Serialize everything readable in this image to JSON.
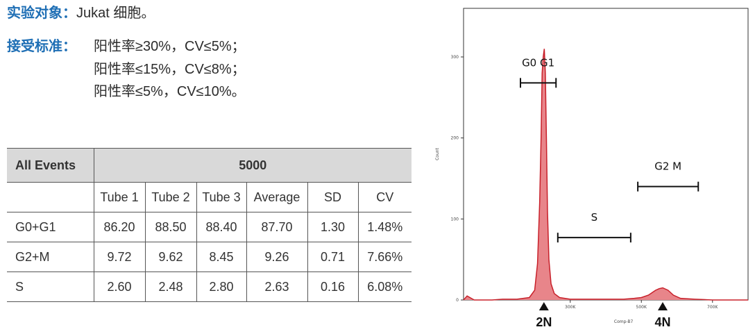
{
  "info": {
    "subject_label": "实验对象：",
    "subject_value": "Jukat 细胞。",
    "criteria_label": "接受标准：",
    "criteria_lines": [
      "阳性率≥30%，CV≤5%；",
      "阳性率≤15%，CV≤8%；",
      "阳性率≤5%，CV≤10%。"
    ]
  },
  "table": {
    "header_label": "All Events",
    "header_value": "5000",
    "columns": [
      "Tube 1",
      "Tube 2",
      "Tube 3",
      "Average",
      "SD",
      "CV"
    ],
    "rows": [
      {
        "label": "G0+G1",
        "values": [
          "86.20",
          "88.50",
          "88.40",
          "87.70",
          "1.30",
          "1.48%"
        ]
      },
      {
        "label": "G2+M",
        "values": [
          "9.72",
          "9.62",
          "8.45",
          "9.26",
          "0.71",
          "7.66%"
        ]
      },
      {
        "label": "S",
        "values": [
          "2.60",
          "2.48",
          "2.80",
          "2.63",
          "0.16",
          "6.08%"
        ]
      }
    ]
  },
  "chart_data": {
    "type": "area",
    "ylabel": "Count",
    "xlabel": "Comp-B7",
    "ylim": [
      0,
      360
    ],
    "xlim": [
      0,
      800000
    ],
    "y_ticks": [
      0,
      100,
      200,
      300
    ],
    "x_ticks": [
      {
        "value": 300000,
        "label": "300K"
      },
      {
        "value": 500000,
        "label": "500K"
      },
      {
        "value": 700000,
        "label": "700K"
      }
    ],
    "series": [
      {
        "fill": "#e8858a",
        "stroke": "#c8202a",
        "x": [
          0,
          10000,
          30000,
          80000,
          110000,
          150000,
          185000,
          200000,
          208000,
          214000,
          218000,
          221000,
          224000,
          227000,
          230000,
          233000,
          236000,
          240000,
          246000,
          255000,
          270000,
          300000,
          350000,
          400000,
          450000,
          480000,
          500000,
          520000,
          530000,
          540000,
          550000,
          560000,
          575000,
          590000,
          610000,
          650000,
          700000,
          760000,
          800000
        ],
        "y": [
          0,
          5,
          0,
          0,
          1,
          1,
          3,
          12,
          45,
          120,
          200,
          280,
          300,
          310,
          280,
          200,
          110,
          50,
          20,
          8,
          3,
          1,
          1,
          1,
          1,
          2,
          3,
          6,
          9,
          12,
          14,
          15,
          12,
          6,
          2,
          1,
          0,
          0,
          0
        ]
      }
    ],
    "gates": [
      {
        "label": "G0 G1",
        "x1": 160000,
        "x2": 260000,
        "y": 268
      },
      {
        "label": "S",
        "x1": 265000,
        "x2": 470000,
        "y": 77
      },
      {
        "label": "G2 M",
        "x1": 490000,
        "x2": 660000,
        "y": 140
      }
    ],
    "markers": [
      {
        "label": "2N",
        "x": 226000
      },
      {
        "label": "4N",
        "x": 560000
      }
    ]
  }
}
